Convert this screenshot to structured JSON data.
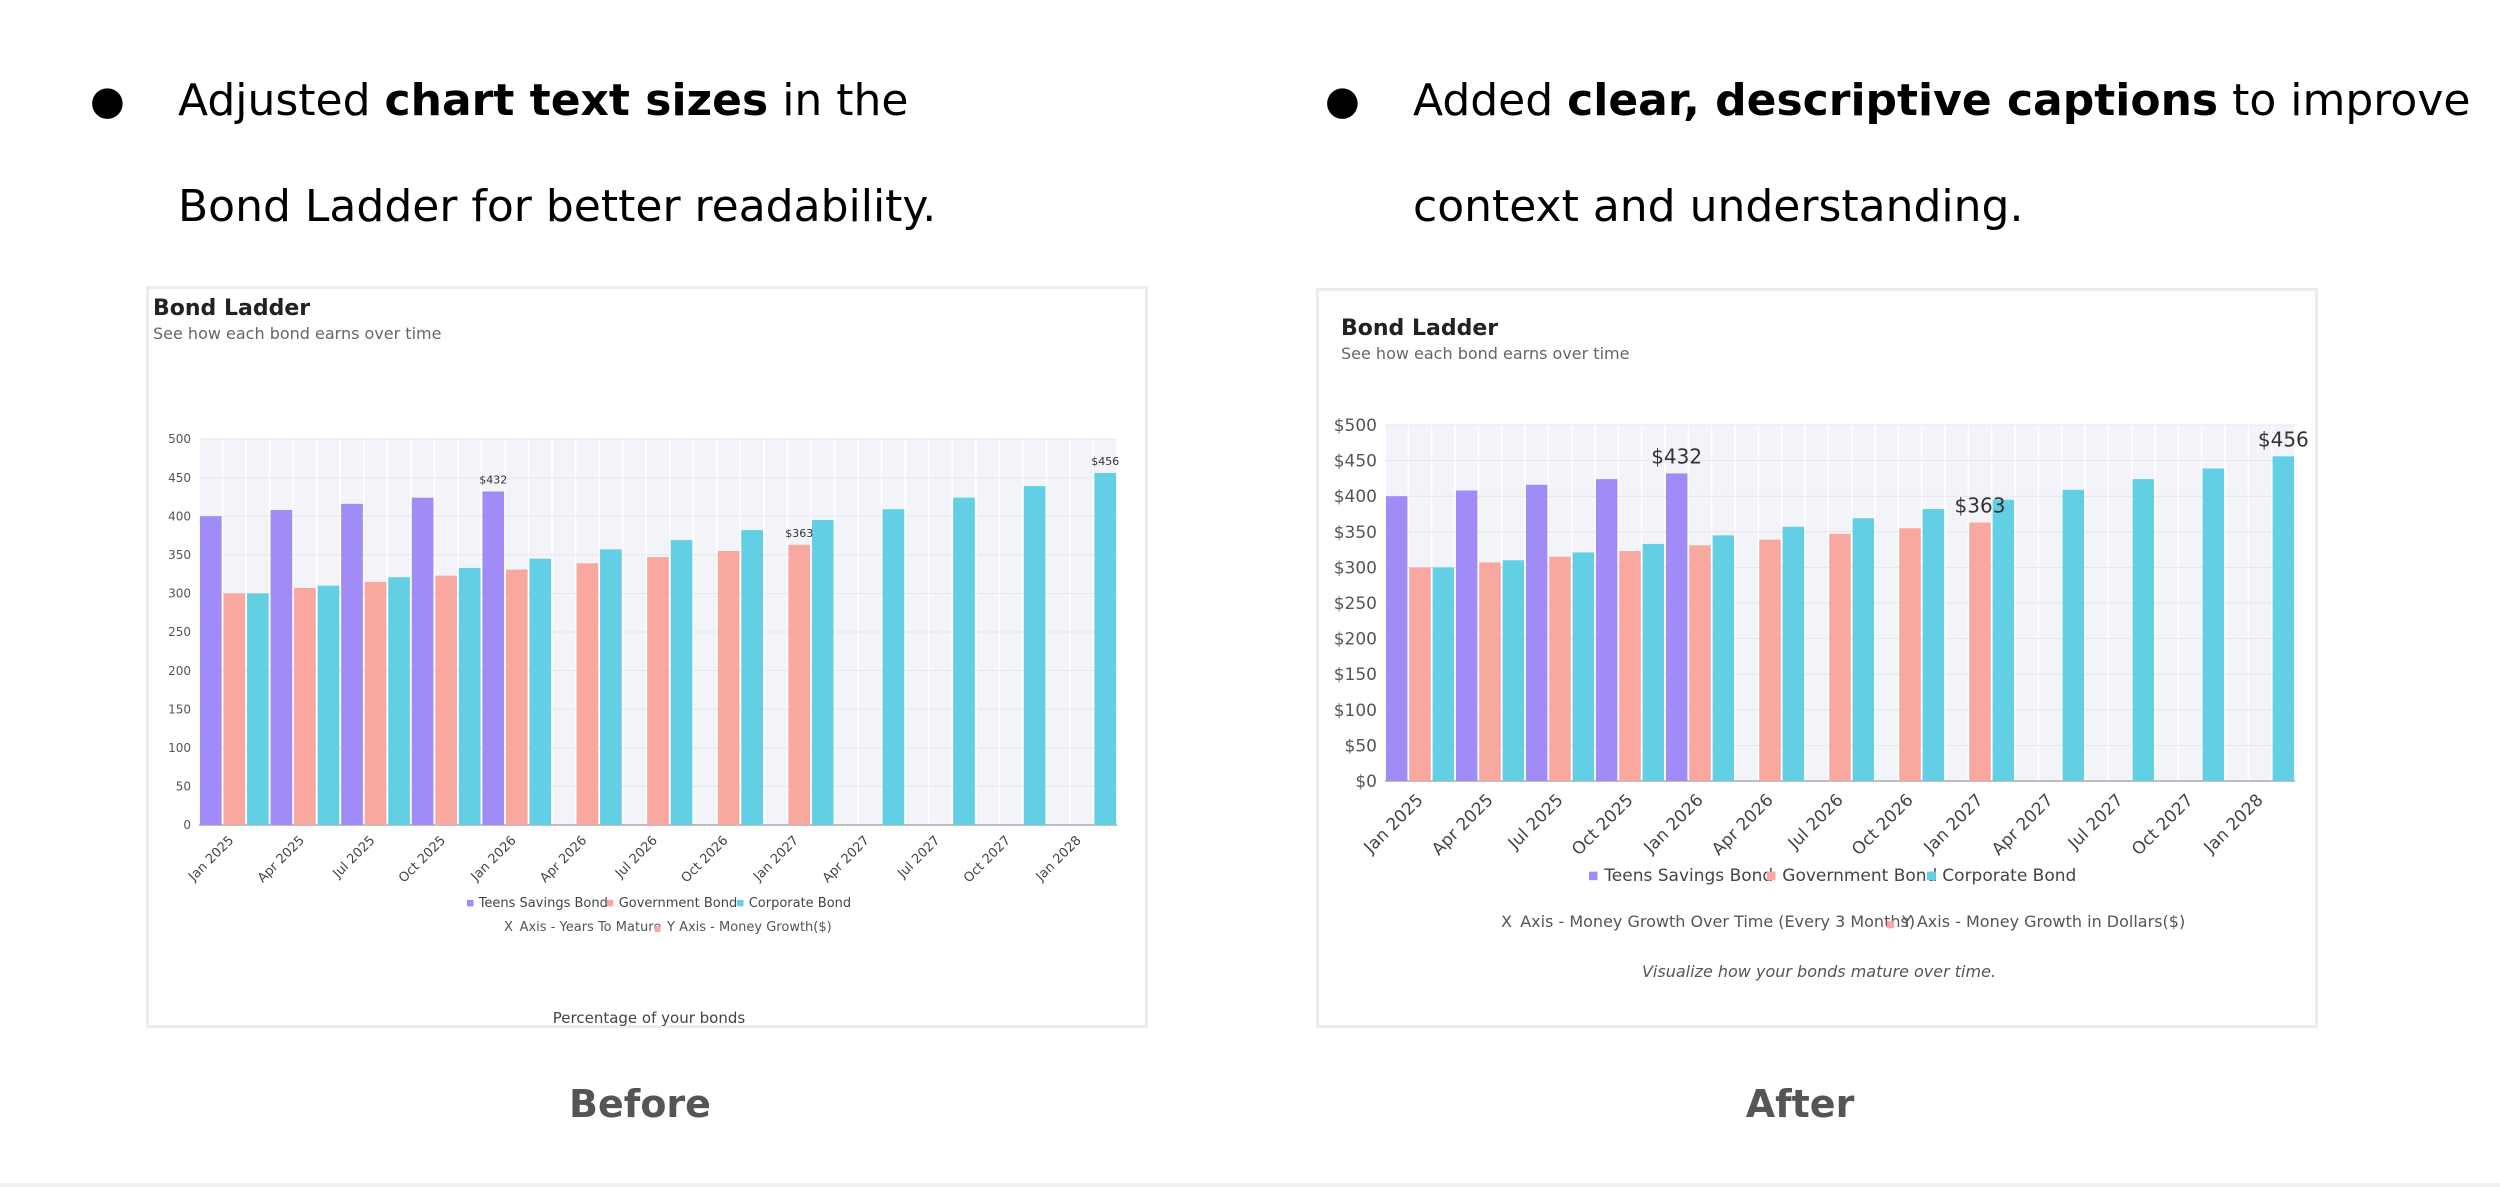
{
  "bullets": [
    {
      "pre": "Adjusted ",
      "bold": "chart text sizes",
      "mid": " in the",
      "line2": "Bond Ladder for better readability."
    },
    {
      "pre": "Added ",
      "bold": "clear, descriptive captions",
      "mid": " to improve",
      "line2": "context and understanding."
    }
  ],
  "bullet_glyph": "●",
  "labels": {
    "before": "Before",
    "after": "After"
  },
  "colors": {
    "teens": "#a18cf7",
    "gov": "#f9a8a0",
    "corp": "#63cfe5",
    "plot_bg": "#f3f4f9"
  },
  "chart_data": [
    {
      "type": "bar",
      "title": "Bond Ladder",
      "subtitle": "See how each bond earns over time",
      "categories": [
        "Jan 2025",
        "Apr 2025",
        "Jul 2025",
        "Oct 2025",
        "Jan 2026",
        "Apr 2026",
        "Jul 2026",
        "Oct 2026",
        "Jan 2027",
        "Apr 2027",
        "Jul 2027",
        "Oct 2027",
        "Jan 2028"
      ],
      "series": [
        {
          "name": "Teens Savings Bond",
          "values": [
            400,
            408,
            416,
            424,
            432,
            null,
            null,
            null,
            null,
            null,
            null,
            null,
            null
          ]
        },
        {
          "name": "Government Bond",
          "values": [
            300,
            307,
            315,
            323,
            331,
            339,
            347,
            355,
            363,
            null,
            null,
            null,
            null
          ]
        },
        {
          "name": "Corporate Bond",
          "values": [
            300,
            310,
            321,
            333,
            345,
            357,
            369,
            382,
            395,
            409,
            424,
            439,
            456
          ]
        }
      ],
      "yticks": [
        "0",
        "50",
        "100",
        "150",
        "200",
        "250",
        "300",
        "350",
        "400",
        "450",
        "500"
      ],
      "ylim": [
        0,
        500
      ],
      "data_labels": [
        {
          "series": 0,
          "index": 4,
          "text": "$432"
        },
        {
          "series": 1,
          "index": 8,
          "text": "$363"
        },
        {
          "series": 2,
          "index": 12,
          "text": "$456"
        }
      ],
      "legend_position": "bottom",
      "axis_notes": [
        {
          "marker": "X",
          "text": "Axis - Years To Mature"
        },
        {
          "marker": "■",
          "text": "Y Axis - Money Growth($)"
        }
      ],
      "footer": "Percentage of your bonds"
    },
    {
      "type": "bar",
      "title": "Bond Ladder",
      "subtitle": "See how each bond earns over time",
      "categories": [
        "Jan 2025",
        "Apr 2025",
        "Jul 2025",
        "Oct 2025",
        "Jan 2026",
        "Apr 2026",
        "Jul 2026",
        "Oct 2026",
        "Jan 2027",
        "Apr 2027",
        "Jul 2027",
        "Oct 2027",
        "Jan 2028"
      ],
      "series": [
        {
          "name": "Teens Savings Bond",
          "values": [
            400,
            408,
            416,
            424,
            432,
            null,
            null,
            null,
            null,
            null,
            null,
            null,
            null
          ]
        },
        {
          "name": "Government Bond",
          "values": [
            300,
            307,
            315,
            323,
            331,
            339,
            347,
            355,
            363,
            null,
            null,
            null,
            null
          ]
        },
        {
          "name": "Corporate Bond",
          "values": [
            300,
            310,
            321,
            333,
            345,
            357,
            369,
            382,
            395,
            409,
            424,
            439,
            456
          ]
        }
      ],
      "yticks": [
        "$0",
        "$50",
        "$100",
        "$150",
        "$200",
        "$250",
        "$300",
        "$350",
        "$400",
        "$450",
        "$500"
      ],
      "ylim": [
        0,
        500
      ],
      "data_labels": [
        {
          "series": 0,
          "index": 4,
          "text": "$432"
        },
        {
          "series": 1,
          "index": 8,
          "text": "$363"
        },
        {
          "series": 2,
          "index": 12,
          "text": "$456"
        }
      ],
      "legend_position": "bottom",
      "axis_notes": [
        {
          "marker": "X",
          "text": "Axis - Money Growth Over Time (Every 3 Months)"
        },
        {
          "marker": "■",
          "text": "Y Axis - Money Growth in Dollars($)"
        }
      ],
      "footer": "Visualize how your bonds mature over time."
    }
  ]
}
